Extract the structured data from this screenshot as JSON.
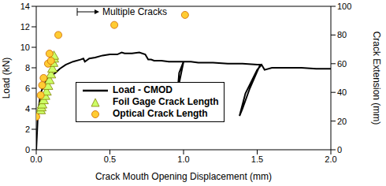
{
  "chart_data": {
    "type": "line",
    "annotation": "Multiple Cracks",
    "x_label": "Crack Mouth Opening Displacement (mm)",
    "y_label": "Load (kN)",
    "y2_label": "Crack Extension (mm)",
    "xlim": [
      0,
      2
    ],
    "xticks": [
      {
        "value": 0,
        "label": "0.0"
      },
      {
        "value": 0.5,
        "label": "0.5"
      },
      {
        "value": 1,
        "label": "1.0"
      },
      {
        "value": 1.5,
        "label": "1.5"
      },
      {
        "value": 2,
        "label": "2.0"
      }
    ],
    "ylim": [
      0,
      14
    ],
    "yticks": [
      0,
      2,
      4,
      6,
      8,
      10,
      12,
      14
    ],
    "y2lim": [
      0,
      100
    ],
    "y2ticks": [
      0,
      20,
      40,
      60,
      80,
      100
    ],
    "legend": "lower left",
    "series": [
      {
        "name": "Load - CMOD",
        "type": "line",
        "color": "#000000",
        "x": [
          0,
          0.005,
          0.01,
          0.02,
          0.03,
          0.05,
          0.08,
          0.1,
          0.13,
          0.16,
          0.2,
          0.25,
          0.3,
          0.32,
          0.33,
          0.36,
          0.4,
          0.45,
          0.5,
          0.55,
          0.58,
          0.6,
          0.65,
          0.7,
          0.74,
          0.76,
          0.78,
          0.8,
          0.85,
          0.9,
          0.95,
          1.0,
          0.97,
          0.96,
          0.97,
          1.0,
          1.05,
          1.1,
          1.2,
          1.3,
          1.4,
          1.5,
          1.52,
          1.45,
          1.4,
          1.38,
          1.42,
          1.5,
          1.53,
          1.55,
          1.6,
          1.7,
          1.8,
          1.9,
          2.0
        ],
        "values": [
          0,
          1.5,
          3,
          4.5,
          5.5,
          6.3,
          7.0,
          7.2,
          7.5,
          7.9,
          8.3,
          8.6,
          8.8,
          8.9,
          8.6,
          8.9,
          9.0,
          9.2,
          9.3,
          9.3,
          9.5,
          9.4,
          9.4,
          9.5,
          9.3,
          8.8,
          8.8,
          8.7,
          8.7,
          8.6,
          8.6,
          8.6,
          7.5,
          5.8,
          6.5,
          8.6,
          8.6,
          8.5,
          8.5,
          8.4,
          8.4,
          8.3,
          8.3,
          6.0,
          4.0,
          3.3,
          5.5,
          7.8,
          8.3,
          7.8,
          8.0,
          8.0,
          8.0,
          7.9,
          7.9
        ]
      },
      {
        "name": "Foil Gage Crack Length",
        "type": "scatter",
        "marker": "triangle",
        "color": "#ccff66",
        "axis": "y2",
        "x": [
          0.03,
          0.035,
          0.04,
          0.05,
          0.06,
          0.07,
          0.08,
          0.09,
          0.1,
          0.11,
          0.115,
          0.12,
          0.12
        ],
        "values": [
          27,
          29,
          31,
          34,
          37,
          40,
          44,
          48,
          52,
          56,
          60,
          63,
          65
        ]
      },
      {
        "name": "Optical Crack Length",
        "type": "scatter",
        "marker": "circle",
        "color": "#ffcc33",
        "axis": "y2",
        "x": [
          0.0,
          0.03,
          0.04,
          0.05,
          0.08,
          0.09,
          0.1,
          0.15,
          0.53,
          1.01
        ],
        "values": [
          23,
          38,
          45,
          50,
          60,
          67,
          62,
          80,
          87,
          94
        ]
      }
    ]
  }
}
